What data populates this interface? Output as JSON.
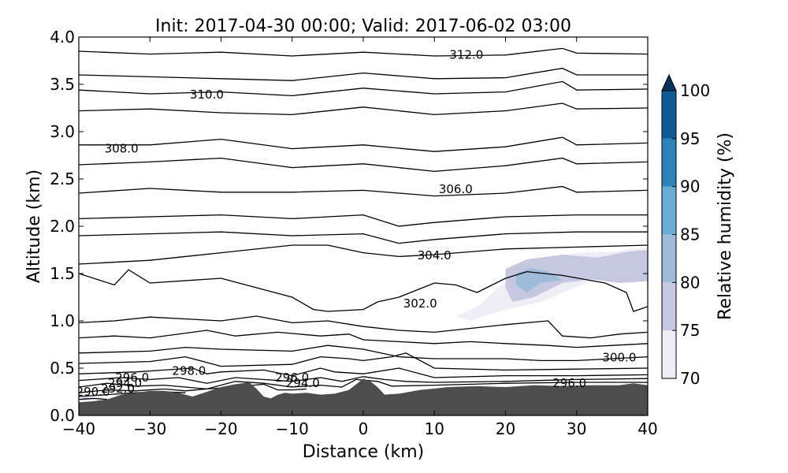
{
  "chart_data": {
    "type": "contour",
    "title": "Init: 2017-04-30 00:00; Valid: 2017-06-02 03:00",
    "xlabel": "Distance (km)",
    "ylabel": "Altitude (km)",
    "xlim": [
      -40,
      40
    ],
    "ylim": [
      0.0,
      4.0
    ],
    "x_ticks": [
      -40,
      -30,
      -20,
      -10,
      0,
      10,
      20,
      30,
      40
    ],
    "x_tick_labels": [
      "−40",
      "−30",
      "−20",
      "−10",
      "0",
      "10",
      "20",
      "30",
      "40"
    ],
    "y_ticks": [
      0.0,
      0.5,
      1.0,
      1.5,
      2.0,
      2.5,
      3.0,
      3.5,
      4.0
    ],
    "y_tick_labels": [
      "0.0",
      "0.5",
      "1.0",
      "1.5",
      "2.0",
      "2.5",
      "3.0",
      "3.5",
      "4.0"
    ],
    "grid": false,
    "colorbar": {
      "label": "Relative humidity (%)",
      "levels": [
        70,
        75,
        80,
        85,
        90,
        95,
        100
      ],
      "tick_labels": [
        "70",
        "75",
        "80",
        "85",
        "90",
        "95",
        "100"
      ],
      "colors": [
        "#efedf5",
        "#c6c8e2",
        "#9ebcda",
        "#6aaed6",
        "#2b83ba",
        "#0f5b96"
      ],
      "extend_color": "#08345c",
      "extend": "max"
    },
    "terrain": {
      "color": "#4d4d4d",
      "x": [
        -40,
        -38,
        -36,
        -34,
        -32,
        -30,
        -28,
        -26,
        -24,
        -22,
        -20,
        -18,
        -16,
        -15,
        -14,
        -13,
        -12,
        -11,
        -10,
        -8,
        -6,
        -4,
        -2,
        -1,
        0,
        1,
        2,
        3,
        5,
        8,
        12,
        16,
        20,
        24,
        28,
        32,
        36,
        38,
        40
      ],
      "y": [
        0.14,
        0.15,
        0.17,
        0.22,
        0.24,
        0.26,
        0.26,
        0.24,
        0.2,
        0.25,
        0.3,
        0.33,
        0.35,
        0.28,
        0.2,
        0.18,
        0.22,
        0.24,
        0.23,
        0.24,
        0.22,
        0.23,
        0.27,
        0.33,
        0.39,
        0.36,
        0.3,
        0.22,
        0.23,
        0.27,
        0.3,
        0.31,
        0.3,
        0.32,
        0.31,
        0.32,
        0.32,
        0.34,
        0.32
      ]
    },
    "humidity_regions": [
      {
        "level": 70,
        "points": [
          [
            13,
            1.05
          ],
          [
            16,
            1.15
          ],
          [
            20,
            1.42
          ],
          [
            23,
            1.62
          ],
          [
            30,
            1.72
          ],
          [
            35,
            1.73
          ],
          [
            40,
            1.78
          ],
          [
            40,
            1.58
          ],
          [
            35,
            1.5
          ],
          [
            30,
            1.36
          ],
          [
            25,
            1.2
          ],
          [
            20,
            1.12
          ],
          [
            15,
            1.0
          ]
        ]
      },
      {
        "level": 75,
        "points": [
          [
            20,
            1.55
          ],
          [
            23,
            1.65
          ],
          [
            28,
            1.7
          ],
          [
            33,
            1.67
          ],
          [
            37,
            1.73
          ],
          [
            40,
            1.75
          ],
          [
            40,
            1.42
          ],
          [
            36,
            1.4
          ],
          [
            32,
            1.44
          ],
          [
            28,
            1.4
          ],
          [
            24,
            1.25
          ],
          [
            21,
            1.2
          ],
          [
            20,
            1.35
          ]
        ]
      },
      {
        "level": 80,
        "points": [
          [
            21.5,
            1.5
          ],
          [
            23.5,
            1.56
          ],
          [
            26,
            1.52
          ],
          [
            28,
            1.43
          ],
          [
            25,
            1.4
          ],
          [
            23,
            1.3
          ],
          [
            21.5,
            1.38
          ]
        ]
      },
      {
        "level": 70,
        "points": [
          [
            -40,
            0.19
          ],
          [
            -38,
            0.21
          ],
          [
            -36,
            0.19
          ],
          [
            -38,
            0.16
          ],
          [
            -40,
            0.16
          ]
        ]
      },
      {
        "level": 80,
        "points": [
          [
            -40,
            0.17
          ],
          [
            -39,
            0.19
          ],
          [
            -38,
            0.17
          ],
          [
            -40,
            0.16
          ]
        ]
      }
    ],
    "contours": [
      {
        "value": 312.0,
        "x": [
          -40,
          -30,
          -20,
          -10,
          0,
          10,
          20,
          28,
          30,
          40
        ],
        "y": [
          3.85,
          3.82,
          3.84,
          3.8,
          3.84,
          3.8,
          3.81,
          3.88,
          3.83,
          3.82
        ]
      },
      {
        "value": 311.0,
        "x": [
          -40,
          -30,
          -20,
          -10,
          0,
          10,
          20,
          28,
          30,
          40
        ],
        "y": [
          3.6,
          3.58,
          3.56,
          3.54,
          3.62,
          3.56,
          3.57,
          3.67,
          3.6,
          3.6
        ]
      },
      {
        "value": 310.0,
        "x": [
          -40,
          -30,
          -20,
          -10,
          0,
          10,
          20,
          28,
          30,
          40
        ],
        "y": [
          3.44,
          3.4,
          3.42,
          3.38,
          3.46,
          3.4,
          3.42,
          3.53,
          3.44,
          3.45
        ]
      },
      {
        "value": 309.0,
        "x": [
          -40,
          -30,
          -20,
          -10,
          0,
          10,
          20,
          28,
          30,
          40
        ],
        "y": [
          3.22,
          3.24,
          3.2,
          3.18,
          3.26,
          3.18,
          3.22,
          3.3,
          3.24,
          3.25
        ]
      },
      {
        "value": 308.0,
        "x": [
          -40,
          -30,
          -20,
          -10,
          0,
          10,
          20,
          28,
          30,
          40
        ],
        "y": [
          2.86,
          2.86,
          2.92,
          2.82,
          2.86,
          2.79,
          2.84,
          2.94,
          2.86,
          2.88
        ]
      },
      {
        "value": 307.0,
        "x": [
          -40,
          -30,
          -20,
          -10,
          0,
          10,
          20,
          28,
          30,
          40
        ],
        "y": [
          2.65,
          2.68,
          2.72,
          2.62,
          2.66,
          2.58,
          2.64,
          2.72,
          2.66,
          2.68
        ]
      },
      {
        "value": 306.0,
        "x": [
          -40,
          -30,
          -20,
          -10,
          0,
          10,
          20,
          28,
          30,
          40
        ],
        "y": [
          2.35,
          2.4,
          2.36,
          2.36,
          2.38,
          2.32,
          2.35,
          2.42,
          2.36,
          2.38
        ]
      },
      {
        "value": 305.0,
        "x": [
          -40,
          -30,
          -20,
          -10,
          0,
          5,
          10,
          20,
          30,
          40
        ],
        "y": [
          2.08,
          2.1,
          2.12,
          2.08,
          2.12,
          2.0,
          2.04,
          2.1,
          2.12,
          2.12
        ]
      },
      {
        "value": 304.5,
        "x": [
          -40,
          -30,
          -20,
          -10,
          0,
          5,
          10,
          20,
          30,
          40
        ],
        "y": [
          1.9,
          1.92,
          1.94,
          1.9,
          1.92,
          1.82,
          1.86,
          1.92,
          1.94,
          1.94
        ]
      },
      {
        "value": 304.0,
        "x": [
          -40,
          -30,
          -20,
          -10,
          -5,
          0,
          5,
          10,
          20,
          30,
          40
        ],
        "y": [
          1.6,
          1.64,
          1.72,
          1.8,
          1.8,
          1.72,
          1.68,
          1.7,
          1.76,
          1.78,
          1.8
        ]
      },
      {
        "value": 303.0,
        "x": [
          -40,
          -35,
          -33,
          -30,
          -20,
          -15,
          -10,
          -7,
          -5,
          0,
          2,
          5,
          10,
          13,
          16,
          20,
          23,
          28,
          34,
          37,
          38,
          40
        ],
        "y": [
          1.5,
          1.38,
          1.54,
          1.4,
          1.45,
          1.35,
          1.25,
          1.12,
          1.1,
          1.12,
          1.2,
          1.25,
          1.4,
          1.38,
          1.3,
          1.45,
          1.52,
          1.48,
          1.4,
          1.3,
          1.1,
          1.15
        ]
      },
      {
        "value": 301.5,
        "x": [
          -40,
          -35,
          -30,
          -20,
          -15,
          -10,
          -5,
          0,
          5,
          10,
          15,
          20,
          26,
          28,
          32,
          36,
          40
        ],
        "y": [
          0.98,
          1.0,
          1.04,
          1.0,
          1.05,
          0.98,
          1.0,
          0.94,
          0.9,
          0.88,
          0.92,
          0.96,
          1.0,
          0.84,
          0.82,
          0.86,
          0.88
        ]
      },
      {
        "value": 301.0,
        "x": [
          -40,
          -35,
          -30,
          -22,
          -18,
          -12,
          -6,
          -2,
          0,
          5,
          10,
          15,
          20,
          26,
          30,
          35,
          40
        ],
        "y": [
          0.82,
          0.84,
          0.82,
          0.9,
          0.84,
          0.88,
          0.84,
          0.86,
          0.8,
          0.78,
          0.76,
          0.78,
          0.76,
          0.74,
          0.72,
          0.74,
          0.76
        ]
      },
      {
        "value": 300.0,
        "x": [
          -40,
          -30,
          -25,
          -20,
          -10,
          -5,
          0,
          5,
          10,
          20,
          25,
          30,
          35,
          40
        ],
        "y": [
          0.66,
          0.68,
          0.72,
          0.7,
          0.68,
          0.74,
          0.7,
          0.62,
          0.6,
          0.6,
          0.58,
          0.58,
          0.6,
          0.62
        ]
      },
      {
        "value": 299.0,
        "x": [
          -40,
          -30,
          -25,
          -20,
          -10,
          -6,
          -2,
          0,
          4,
          6,
          10,
          20,
          30,
          40
        ],
        "y": [
          0.55,
          0.57,
          0.62,
          0.52,
          0.54,
          0.62,
          0.6,
          0.58,
          0.62,
          0.66,
          0.5,
          0.48,
          0.49,
          0.5
        ]
      },
      {
        "value": 298.0,
        "x": [
          -40,
          -32,
          -28,
          -24,
          -22,
          -20,
          -14,
          -10,
          -6,
          -4,
          0,
          5,
          10,
          20,
          30,
          40
        ],
        "y": [
          0.44,
          0.46,
          0.48,
          0.5,
          0.44,
          0.46,
          0.48,
          0.42,
          0.5,
          0.46,
          0.44,
          0.5,
          0.4,
          0.42,
          0.42,
          0.43
        ]
      },
      {
        "value": 297.0,
        "x": [
          -40,
          -34,
          -30,
          -26,
          -22,
          -18,
          -14,
          -10,
          -6,
          -3,
          0,
          3,
          6,
          10,
          20,
          30,
          40
        ],
        "y": [
          0.37,
          0.4,
          0.38,
          0.4,
          0.34,
          0.4,
          0.38,
          0.36,
          0.4,
          0.36,
          0.41,
          0.38,
          0.36,
          0.35,
          0.36,
          0.38,
          0.39
        ]
      },
      {
        "value": 296.0,
        "x": [
          -40,
          -36,
          -32,
          -28,
          -25,
          -22,
          -18,
          -14,
          -10,
          -6,
          -3,
          -1,
          2,
          4,
          10,
          20,
          30,
          40
        ],
        "y": [
          0.3,
          0.34,
          0.31,
          0.32,
          0.3,
          0.28,
          0.36,
          0.34,
          0.3,
          0.32,
          0.3,
          0.38,
          0.36,
          0.31,
          0.32,
          0.34,
          0.35,
          0.35
        ]
      },
      {
        "value": 294.0,
        "x": [
          -40,
          -36,
          -32,
          -28,
          -25,
          -22,
          -18,
          -14,
          -12,
          -10,
          -8
        ],
        "y": [
          0.24,
          0.27,
          0.26,
          0.28,
          0.26,
          0.28,
          0.3,
          0.33,
          0.27,
          0.27,
          0.28
        ]
      },
      {
        "value": 292.0,
        "x": [
          -40,
          -36,
          -32,
          -28,
          -25
        ],
        "y": [
          0.2,
          0.22,
          0.24,
          0.25,
          0.24
        ]
      },
      {
        "value": 290.0,
        "x": [
          -40,
          -38,
          -36
        ],
        "y": [
          0.17,
          0.18,
          0.17
        ]
      }
    ],
    "contour_labels": [
      {
        "text": "312.0",
        "x": 14.5,
        "y": 3.82
      },
      {
        "text": "310.0",
        "x": -22,
        "y": 3.4
      },
      {
        "text": "308.0",
        "x": -34,
        "y": 2.83
      },
      {
        "text": "306.0",
        "x": 13,
        "y": 2.4
      },
      {
        "text": "304.0",
        "x": 10,
        "y": 1.7
      },
      {
        "text": "302.0",
        "x": 8,
        "y": 1.19
      },
      {
        "text": "300.0",
        "x": 36,
        "y": 0.62
      },
      {
        "text": "298.0",
        "x": -24.5,
        "y": 0.48
      },
      {
        "text": "296.0",
        "x": -32.5,
        "y": 0.41
      },
      {
        "text": "296.0",
        "x": -10,
        "y": 0.41
      },
      {
        "text": "296.0",
        "x": 29,
        "y": 0.35
      },
      {
        "text": "294.0",
        "x": -33.5,
        "y": 0.35
      },
      {
        "text": "294.0",
        "x": -8.5,
        "y": 0.35
      },
      {
        "text": "292.0",
        "x": -34.5,
        "y": 0.29
      },
      {
        "text": "290.0",
        "x": -38,
        "y": 0.26
      }
    ]
  }
}
